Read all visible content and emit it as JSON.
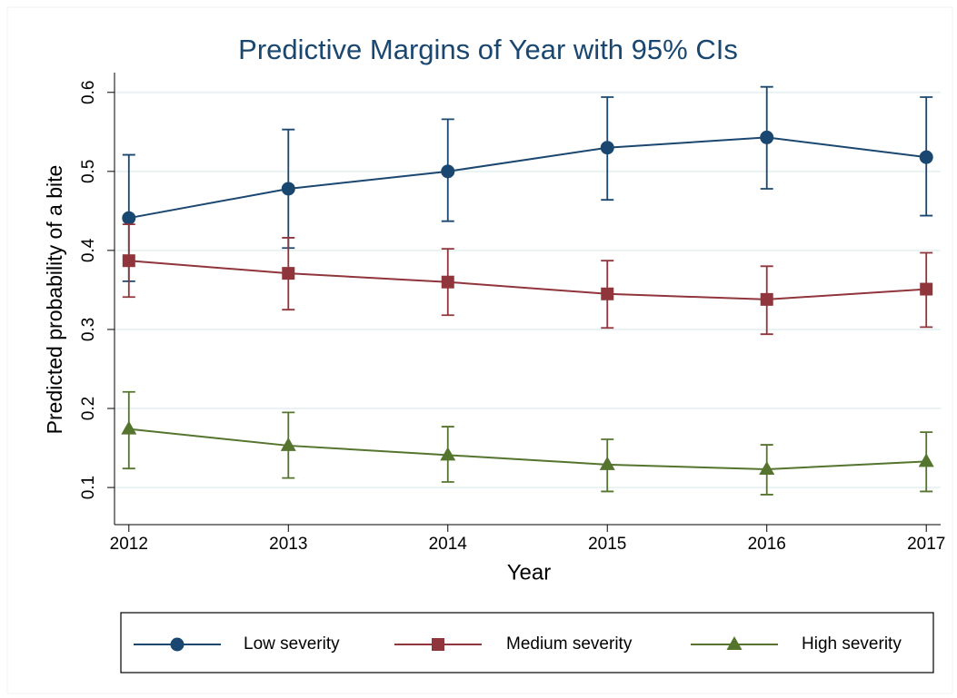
{
  "chart_data": {
    "type": "line",
    "title": "Predictive Margins of Year with 95% CIs",
    "x_label": "Year",
    "y_label": "Predicted probability of a bite",
    "x": [
      2012,
      2013,
      2014,
      2015,
      2016,
      2017
    ],
    "xlim": [
      2011.91,
      2017.09
    ],
    "xticks": [
      2012,
      2013,
      2014,
      2015,
      2016,
      2017
    ],
    "ylim": [
      0.053,
      0.625
    ],
    "yticks": [
      0.1,
      0.2,
      0.3,
      0.4,
      0.5,
      0.6
    ],
    "grid": true,
    "legend_position": "bottom",
    "series": [
      {
        "name": "Low severity",
        "color": "#1a476f",
        "marker": "circle",
        "values": [
          0.441,
          0.478,
          0.5,
          0.53,
          0.543,
          0.518
        ],
        "lower": [
          0.361,
          0.403,
          0.437,
          0.464,
          0.478,
          0.444
        ],
        "upper": [
          0.521,
          0.553,
          0.566,
          0.594,
          0.607,
          0.594
        ]
      },
      {
        "name": "Medium severity",
        "color": "#90353b",
        "marker": "square",
        "values": [
          0.387,
          0.371,
          0.36,
          0.345,
          0.338,
          0.351
        ],
        "lower": [
          0.341,
          0.325,
          0.318,
          0.302,
          0.294,
          0.303
        ],
        "upper": [
          0.433,
          0.416,
          0.402,
          0.387,
          0.38,
          0.397
        ]
      },
      {
        "name": "High severity",
        "color": "#55752f",
        "marker": "triangle",
        "values": [
          0.174,
          0.153,
          0.141,
          0.129,
          0.123,
          0.133
        ],
        "lower": [
          0.124,
          0.112,
          0.107,
          0.095,
          0.091,
          0.095
        ],
        "upper": [
          0.221,
          0.195,
          0.177,
          0.161,
          0.154,
          0.17
        ]
      }
    ]
  }
}
